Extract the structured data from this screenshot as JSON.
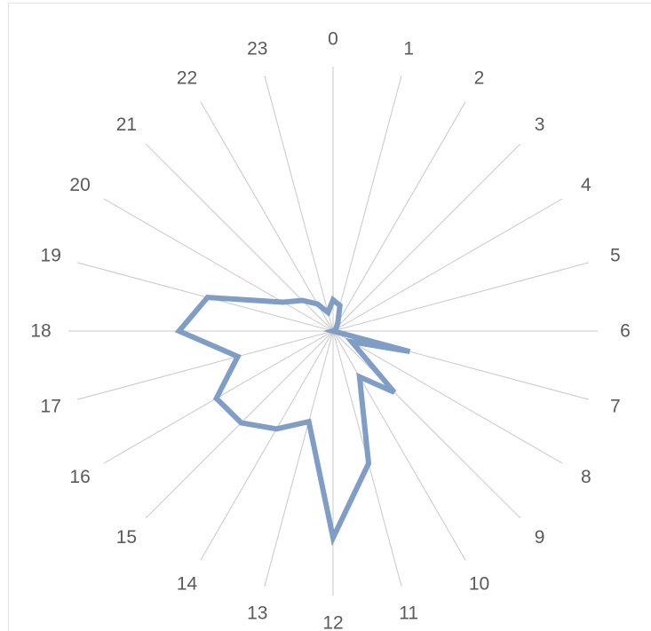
{
  "chart_data": {
    "type": "radar",
    "categories": [
      "0",
      "1",
      "2",
      "3",
      "4",
      "5",
      "6",
      "7",
      "8",
      "9",
      "10",
      "11",
      "12",
      "13",
      "14",
      "15",
      "16",
      "17",
      "18",
      "19",
      "20",
      "21",
      "22",
      "23"
    ],
    "series": [
      {
        "values": [
          13,
          11,
          4,
          2,
          1,
          1,
          0,
          33,
          9,
          36,
          22,
          57,
          86,
          39,
          47,
          54,
          56,
          41,
          64,
          54,
          24,
          18,
          13,
          8
        ],
        "color": "#7f9dc5"
      }
    ],
    "rlim": [
      0,
      110
    ],
    "grid": true,
    "legend": "none"
  }
}
